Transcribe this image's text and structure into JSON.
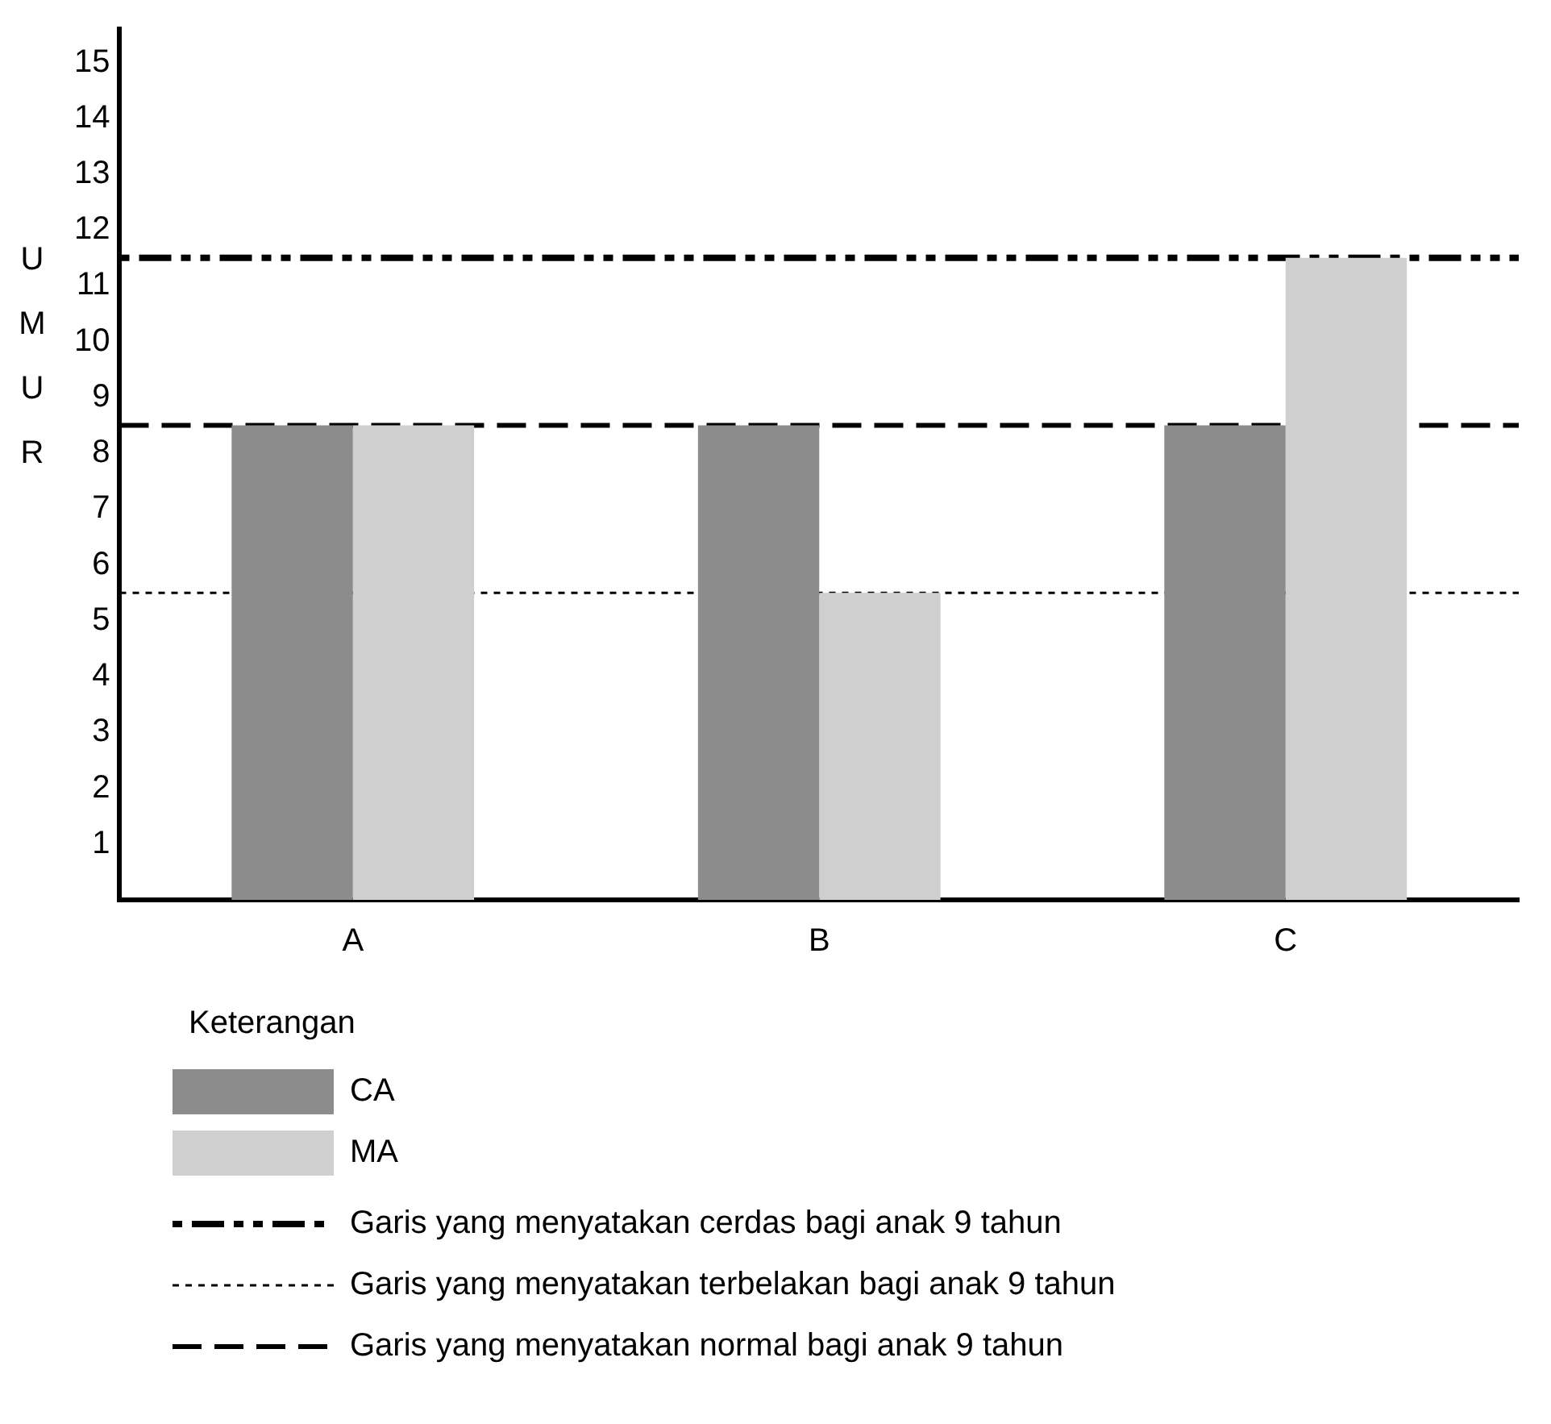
{
  "chart_data": {
    "type": "bar",
    "ylabel": "UMUR",
    "legend_title": "Keterangan",
    "categories": [
      "A",
      "B",
      "C"
    ],
    "series": [
      {
        "name": "CA",
        "color": "#8c8c8c",
        "values": [
          8.5,
          8.5,
          8.5
        ]
      },
      {
        "name": "MA",
        "color": "#cfcfcf",
        "values": [
          8.5,
          5.5,
          11.5
        ]
      }
    ],
    "ylim": [
      0,
      15.6
    ],
    "yticks": [
      1,
      2,
      3,
      4,
      5,
      6,
      7,
      8,
      9,
      10,
      11,
      12,
      13,
      14,
      15
    ],
    "grid": false,
    "legend": "bottom left",
    "ref_lines": [
      {
        "axis": "y",
        "value": 11.5,
        "label": "Garis yang menyatakan cerdas bagi anak 9 tahun",
        "color": "#000000",
        "line_style": "dashdot"
      },
      {
        "axis": "y",
        "value": 5.5,
        "label": "Garis yang menyatakan terbelakan bagi anak 9 tahun",
        "color": "#000000",
        "line_style": "dotted"
      },
      {
        "axis": "y",
        "value": 8.5,
        "label": "Garis yang menyatakan normal bagi anak 9 tahun",
        "color": "#000000",
        "line_style": "dashed"
      }
    ]
  }
}
